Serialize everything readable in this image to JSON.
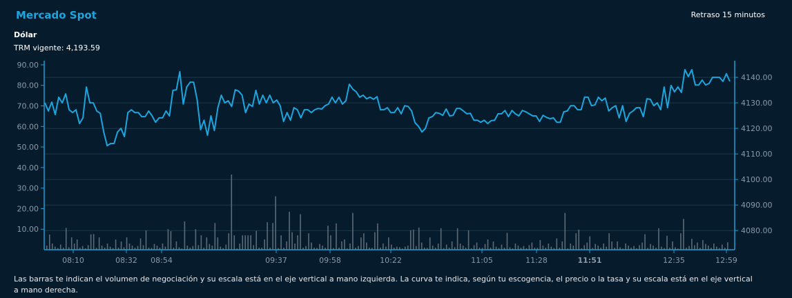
{
  "header": {
    "title": "Mercado Spot",
    "delay_label": "Retraso 15 minutos"
  },
  "currency": {
    "name": "Dólar",
    "trm_label": "TRM vigente: 4,193.59"
  },
  "footnote": "Las barras te indican el volumen de negociación y su escala está en el eje vertical a mano izquierda. La curva te indica, según tu escogencia, el precio o la tasa y su escala está en el eje vertical a mano derecha.",
  "colors": {
    "line": "#1ba6df",
    "bars": "#5b6b78",
    "axis": "#1aa0d8",
    "grid": "#1c3a4c",
    "background": "#061b2c"
  },
  "chart_data": {
    "type": "bar+line",
    "grid": true,
    "left_axis": {
      "ylim": [
        0,
        92
      ],
      "ticks": [
        "10.00",
        "20.00",
        "30.00",
        "40.00",
        "50.00",
        "60.00",
        "70.00",
        "80.00",
        "90.00"
      ]
    },
    "right_axis": {
      "ylim": [
        4072.5,
        4146.5
      ],
      "ticks": [
        "4080.00",
        "4090.00",
        "4100.00",
        "4110.00",
        "4120.00",
        "4130.00",
        "4140.00"
      ]
    },
    "x_ticks": [
      {
        "label": "08:10",
        "bold": false
      },
      {
        "label": "08:32",
        "bold": false
      },
      {
        "label": "08:54",
        "bold": false
      },
      {
        "label": "09:37",
        "bold": false
      },
      {
        "label": "09:58",
        "bold": false
      },
      {
        "label": "10:22",
        "bold": false
      },
      {
        "label": "11:05",
        "bold": false
      },
      {
        "label": "11:28",
        "bold": false
      },
      {
        "label": "11:51",
        "bold": true
      },
      {
        "label": "12:35",
        "bold": false
      },
      {
        "label": "12:59",
        "bold": false
      }
    ],
    "volume": [
      2,
      7.4,
      3,
      1.5,
      0.8,
      2.5,
      1,
      10.6,
      1.2,
      6,
      3,
      5,
      1,
      1.8,
      0.7,
      2.2,
      7.5,
      7.6,
      0.9,
      6,
      2,
      1,
      3,
      1.5,
      0.8,
      5,
      1,
      4,
      1.2,
      6,
      3,
      2,
      1,
      1.8,
      5.5,
      2.2,
      9.4,
      1,
      0.9,
      2.8,
      2,
      1,
      3,
      1.5,
      10,
      9,
      1,
      4,
      1.2,
      0.6,
      13.8,
      2,
      1,
      1.8,
      10,
      2.2,
      7,
      1,
      6,
      2.8,
      2,
      13,
      6,
      1.5,
      0.8,
      2.5,
      8,
      36.6,
      7,
      0.6,
      3,
      7,
      7,
      7,
      7,
      2.2,
      9.2,
      1,
      0.9,
      5,
      13.4,
      1,
      13,
      26,
      0.8,
      7,
      1,
      4,
      18.5,
      8.5,
      3,
      7,
      17.3,
      1,
      1.8,
      8,
      3.5,
      1,
      0.9,
      2.8,
      2,
      1,
      11.7,
      7,
      0.8,
      12.8,
      1,
      4,
      5,
      0.6,
      3,
      17.9,
      1,
      1.8,
      6,
      8,
      3.5,
      1,
      0.9,
      8.5,
      12.8,
      1,
      3,
      1.5,
      6,
      2.5,
      1,
      1.5,
      1.2,
      0.6,
      1.5,
      2,
      9.5,
      9.8,
      1.8,
      10.8,
      3.5,
      1,
      0.9,
      6,
      2,
      1,
      3,
      10.5,
      0.8,
      2.5,
      1,
      4,
      1.2,
      10.5,
      3,
      2,
      1,
      9.5,
      0.7,
      2.2,
      3.5,
      1,
      0.9,
      2.8,
      5,
      1,
      4,
      1.5,
      0.8,
      2.5,
      1,
      8.2,
      1.2,
      0.6,
      3,
      2,
      1,
      1.8,
      0.7,
      2.2,
      3.5,
      1,
      0.9,
      4.7,
      2,
      1,
      3,
      1.5,
      0.8,
      5.5,
      1,
      4,
      17.9,
      0.6,
      3,
      2,
      8,
      9.8,
      0.7,
      2.2,
      3.5,
      6.5,
      0.9,
      2.8,
      2,
      1,
      3,
      1.5,
      8,
      4,
      1,
      4,
      1.2,
      0.6,
      3,
      2,
      1,
      1.8,
      0.7,
      2.2,
      3.5,
      7.5,
      0.9,
      2.8,
      2,
      1,
      10.5,
      1.5,
      0.8,
      6.8,
      1,
      4,
      1.2,
      0.6,
      8,
      15,
      1,
      1.8,
      5.3,
      2.2,
      3.5,
      1,
      4.7,
      2.8,
      2,
      1,
      3,
      1.5,
      0.8,
      2.5,
      1,
      3.6
    ],
    "price": [
      4130.0,
      4126.8,
      4130.3,
      4125.4,
      4132.2,
      4130.0,
      4133.5,
      4127.3,
      4126.2,
      4127.3,
      4121.9,
      4124.1,
      4136.2,
      4130.0,
      4130.0,
      4126.8,
      4125.9,
      4118.6,
      4113.2,
      4114.1,
      4114.1,
      4118.6,
      4120.0,
      4116.8,
      4126.2,
      4127.3,
      4126.2,
      4126.2,
      4124.6,
      4124.6,
      4126.8,
      4124.9,
      4122.4,
      4124.1,
      4124.1,
      4126.8,
      4124.9,
      4134.9,
      4135.1,
      4142.2,
      4129.5,
      4136.2,
      4138.1,
      4138.1,
      4131.4,
      4119.5,
      4123.2,
      4117.3,
      4124.9,
      4119.2,
      4128.1,
      4133.0,
      4130.0,
      4130.8,
      4128.6,
      4135.1,
      4134.6,
      4133.0,
      4126.2,
      4129.5,
      4128.6,
      4134.9,
      4129.5,
      4133.0,
      4130.0,
      4133.0,
      4130.0,
      4131.1,
      4128.9,
      4122.7,
      4126.2,
      4123.2,
      4128.1,
      4127.3,
      4124.1,
      4127.3,
      4127.3,
      4126.2,
      4127.3,
      4127.8,
      4127.6,
      4128.9,
      4129.5,
      4132.2,
      4130.0,
      4132.2,
      4129.5,
      4130.8,
      4137.3,
      4135.4,
      4134.3,
      4132.2,
      4133.0,
      4131.6,
      4132.2,
      4131.4,
      4132.4,
      4127.3,
      4127.3,
      4128.1,
      4126.2,
      4126.2,
      4128.1,
      4125.7,
      4128.9,
      4128.6,
      4126.8,
      4122.2,
      4120.8,
      4118.6,
      4120.0,
      4124.1,
      4124.6,
      4126.2,
      4125.9,
      4125.1,
      4127.6,
      4124.9,
      4125.1,
      4127.8,
      4127.8,
      4126.8,
      4125.7,
      4125.9,
      4123.2,
      4123.2,
      4122.4,
      4123.2,
      4121.9,
      4123.0,
      4123.2,
      4125.7,
      4125.7,
      4127.0,
      4124.6,
      4127.0,
      4125.7,
      4124.9,
      4127.0,
      4126.5,
      4125.7,
      4124.9,
      4124.9,
      4122.7,
      4125.1,
      4124.3,
      4123.8,
      4124.1,
      4122.4,
      4122.4,
      4126.5,
      4126.8,
      4128.9,
      4128.9,
      4127.3,
      4127.3,
      4132.2,
      4132.2,
      4128.9,
      4129.2,
      4132.2,
      4130.8,
      4131.9,
      4126.8,
      4128.1,
      4128.9,
      4124.1,
      4128.9,
      4122.7,
      4125.9,
      4126.8,
      4128.1,
      4128.1,
      4124.6,
      4131.6,
      4131.4,
      4128.9,
      4130.0,
      4127.3,
      4136.2,
      4128.1,
      4136.8,
      4134.3,
      4136.2,
      4134.1,
      4143.0,
      4140.3,
      4143.0,
      4137.0,
      4137.0,
      4138.9,
      4137.0,
      4137.6,
      4140.0,
      4140.0,
      4140.0,
      4138.4,
      4141.4,
      4138.4
    ]
  }
}
